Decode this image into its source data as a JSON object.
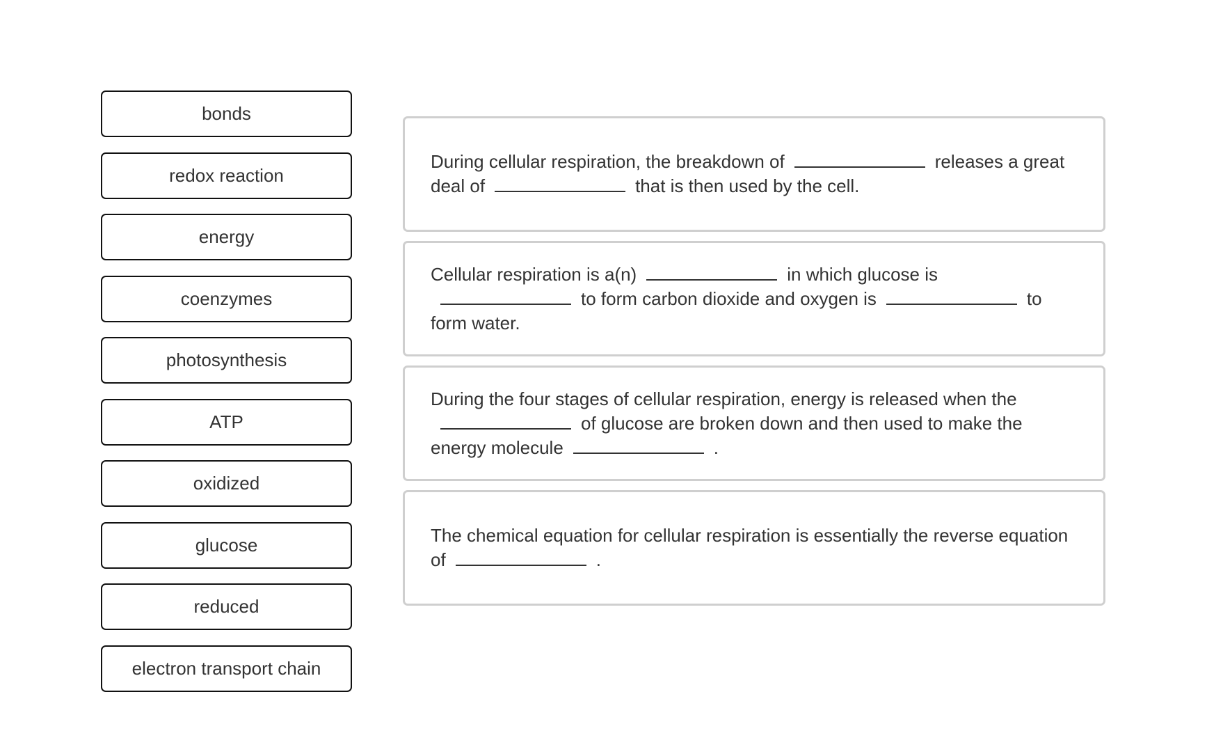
{
  "word_bank": [
    "bonds",
    "redox reaction",
    "energy",
    "coenzymes",
    "photosynthesis",
    "ATP",
    "oxidized",
    "glucose",
    "reduced",
    "electron transport chain"
  ],
  "statements": [
    {
      "parts": [
        "During cellular respiration, the breakdown of",
        "releases a great deal of",
        "that is then used by the cell."
      ]
    },
    {
      "parts": [
        "Cellular respiration is a(n)",
        "in which glucose is",
        "to form carbon dioxide and oxygen is",
        "to form water."
      ]
    },
    {
      "parts": [
        "During the four stages of cellular respiration, energy is released when the",
        "of glucose are broken down and then used to make the energy molecule",
        "."
      ]
    },
    {
      "parts": [
        "The chemical equation for cellular respiration is essentially the reverse equation of",
        "."
      ]
    }
  ]
}
